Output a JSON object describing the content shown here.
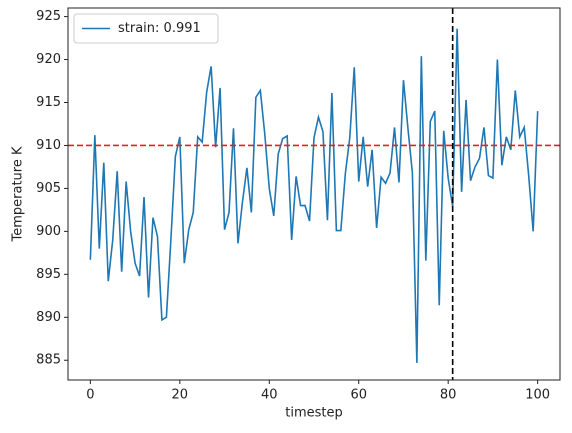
{
  "chart_data": {
    "type": "line",
    "xlabel": "timestep",
    "ylabel": "Temperature K",
    "x": [
      0,
      1,
      2,
      3,
      4,
      5,
      6,
      7,
      8,
      9,
      10,
      11,
      12,
      13,
      14,
      15,
      16,
      17,
      18,
      19,
      20,
      21,
      22,
      23,
      24,
      25,
      26,
      27,
      28,
      29,
      30,
      31,
      32,
      33,
      34,
      35,
      36,
      37,
      38,
      39,
      40,
      41,
      42,
      43,
      44,
      45,
      46,
      47,
      48,
      49,
      50,
      51,
      52,
      53,
      54,
      55,
      56,
      57,
      58,
      59,
      60,
      61,
      62,
      63,
      64,
      65,
      66,
      67,
      68,
      69,
      70,
      71,
      72,
      73,
      74,
      75,
      76,
      77,
      78,
      79,
      80,
      81,
      82,
      83,
      84,
      85,
      86,
      87,
      88,
      89,
      90,
      91,
      92,
      93,
      94,
      95,
      96,
      97,
      98,
      99,
      100
    ],
    "series": [
      {
        "name": "strain: 0.991",
        "color": "#1f77b4",
        "values": [
          896.7,
          911.2,
          898,
          908,
          894.2,
          899,
          907,
          895.3,
          905.8,
          900,
          896.3,
          894.8,
          904,
          892.3,
          901.6,
          899.4,
          889.7,
          890,
          899,
          908.7,
          911,
          896.3,
          900.2,
          902.2,
          911,
          910.4,
          916.2,
          919.2,
          909.8,
          916.7,
          900.2,
          902.2,
          912,
          898.6,
          903.4,
          907.4,
          902.2,
          915.6,
          916.4,
          911.3,
          905,
          901.8,
          909,
          910.8,
          911.1,
          899,
          906.4,
          903,
          903,
          901.2,
          910.9,
          913.3,
          911.6,
          901.3,
          916.1,
          900.1,
          900.1,
          906.7,
          910.9,
          919.1,
          905.8,
          911,
          905.2,
          909.5,
          900.4,
          906.3,
          905.6,
          906.8,
          912.1,
          905.7,
          917.6,
          912,
          906.8,
          884.7,
          920.4,
          896.6,
          912.8,
          914,
          891.4,
          911.7,
          906.2,
          902.9,
          923.6,
          904.6,
          915.3,
          905.9,
          907.5,
          908.5,
          912.1,
          906.5,
          906.2,
          920,
          907.7,
          911,
          909.5,
          916.4,
          911,
          912.1,
          906.5,
          900,
          914
        ]
      }
    ],
    "hline": 910,
    "hline_color": "#e8211d",
    "vline": 81,
    "vline_color": "#000000",
    "xlim": [
      -5,
      105
    ],
    "xticks": [
      0,
      20,
      40,
      60,
      80,
      100
    ],
    "ylim": [
      882.7,
      926
    ],
    "yticks": [
      885,
      890,
      895,
      900,
      905,
      910,
      915,
      920,
      925
    ],
    "legend": "upper left"
  }
}
